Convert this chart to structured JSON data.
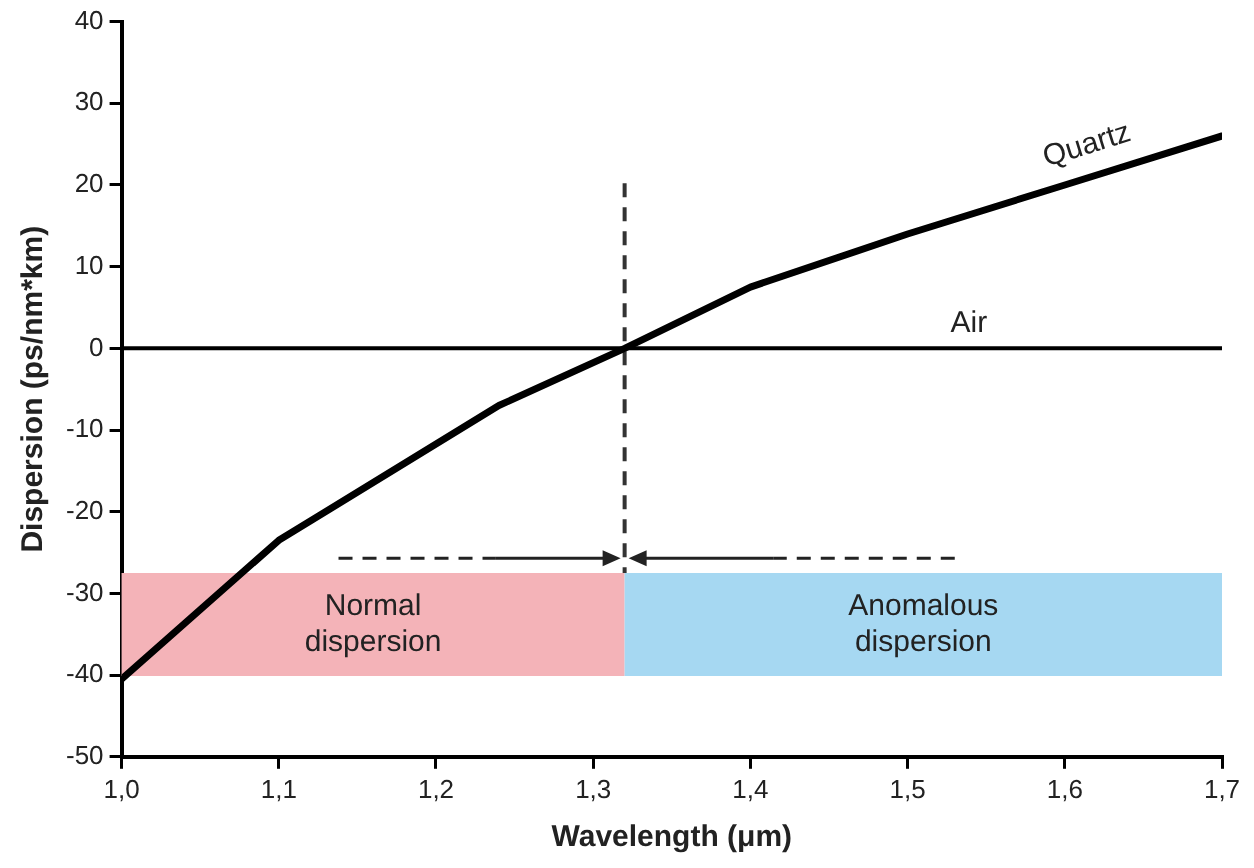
{
  "chart_data": {
    "type": "line",
    "xlabel": "Wavelength (μm)",
    "ylabel": "Dispersion (ps/nm*km)",
    "series": [
      {
        "name": "Quartz",
        "color": "#000000",
        "x": [
          1.0,
          1.1,
          1.24,
          1.32,
          1.4,
          1.5,
          1.6,
          1.7
        ],
        "values": [
          -40.5,
          -23.5,
          -7,
          0,
          7.5,
          14,
          20,
          26
        ]
      }
    ],
    "xlim": [
      1.0,
      1.7
    ],
    "xticks": [
      {
        "value": 1.0,
        "label": "1,0"
      },
      {
        "value": 1.1,
        "label": "1,1"
      },
      {
        "value": 1.2,
        "label": "1,2"
      },
      {
        "value": 1.3,
        "label": "1,3"
      },
      {
        "value": 1.4,
        "label": "1,4"
      },
      {
        "value": 1.5,
        "label": "1,5"
      },
      {
        "value": 1.6,
        "label": "1,6"
      },
      {
        "value": 1.7,
        "label": "1,7"
      }
    ],
    "ylim": [
      -50,
      40
    ],
    "yticks": [
      -50,
      -40,
      -30,
      -20,
      -10,
      0,
      10,
      20,
      30,
      40
    ],
    "ref_lines": [
      {
        "axis": "y",
        "value": 0,
        "label": "Air",
        "color": "#000000",
        "line_style": "solid"
      },
      {
        "axis": "x",
        "value": 1.32,
        "label": null,
        "color": "#333333",
        "line_style": "dashed"
      }
    ],
    "bands": [
      {
        "axis": "x",
        "from": 1.0,
        "to": 1.32,
        "label": "Normal\ndispersion",
        "color": "#f4b3b8"
      },
      {
        "axis": "x",
        "from": 1.32,
        "to": 1.7,
        "label": "Anomalous\ndispersion",
        "color": "#a6d8f2"
      }
    ],
    "grid": false,
    "legend": false,
    "marker": "none",
    "line_style": "solid"
  }
}
